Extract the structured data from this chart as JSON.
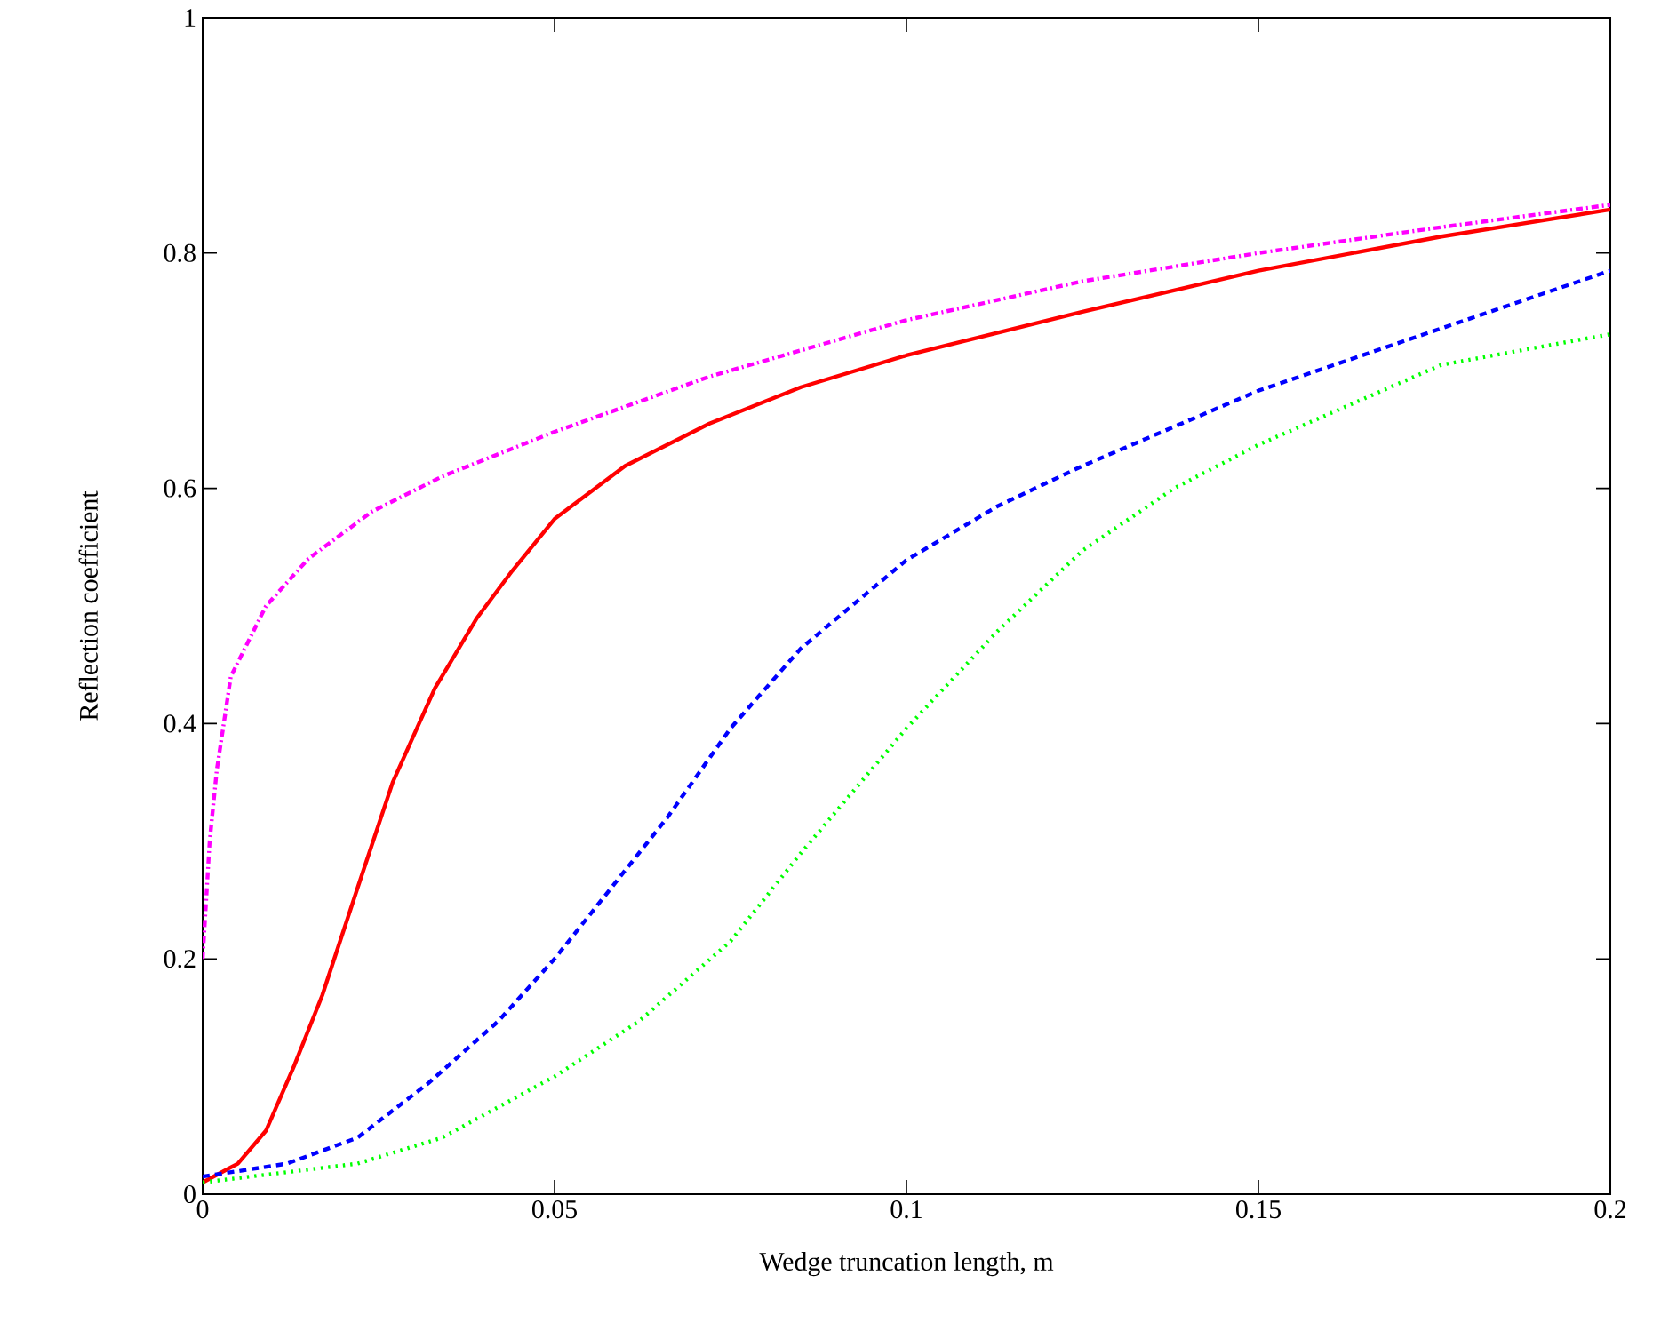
{
  "chart_data": {
    "type": "line",
    "xlabel": "Wedge truncation length,  m",
    "ylabel": "Reflection coefficient",
    "xlim": [
      0,
      0.2
    ],
    "ylim": [
      0,
      1
    ],
    "xticks": [
      0,
      0.05,
      0.1,
      0.15,
      0.2
    ],
    "yticks": [
      0,
      0.2,
      0.4,
      0.6,
      0.8,
      1
    ],
    "grid": false,
    "marker": "none",
    "series": [
      {
        "color": "#ff00ff",
        "line_style": "dashdot",
        "x": [
          0,
          0.001,
          0.002,
          0.004,
          0.009,
          0.015,
          0.024,
          0.034,
          0.05,
          0.072,
          0.1,
          0.125,
          0.15,
          0.176,
          0.2
        ],
        "values": [
          0.2,
          0.3,
          0.36,
          0.44,
          0.5,
          0.54,
          0.58,
          0.61,
          0.648,
          0.695,
          0.743,
          0.776,
          0.8,
          0.822,
          0.841
        ]
      },
      {
        "color": "#ff0000",
        "line_style": "solid",
        "x": [
          0,
          0.005,
          0.009,
          0.013,
          0.017,
          0.022,
          0.027,
          0.033,
          0.039,
          0.044,
          0.05,
          0.06,
          0.072,
          0.085,
          0.1,
          0.125,
          0.15,
          0.176,
          0.2
        ],
        "values": [
          0.01,
          0.026,
          0.054,
          0.109,
          0.169,
          0.26,
          0.35,
          0.43,
          0.49,
          0.53,
          0.574,
          0.619,
          0.655,
          0.686,
          0.713,
          0.75,
          0.785,
          0.814,
          0.837
        ]
      },
      {
        "color": "#0000ff",
        "line_style": "dashed",
        "x": [
          0,
          0.012,
          0.022,
          0.032,
          0.042,
          0.05,
          0.058,
          0.066,
          0.075,
          0.085,
          0.1,
          0.113,
          0.125,
          0.15,
          0.176,
          0.2
        ],
        "values": [
          0.015,
          0.026,
          0.048,
          0.094,
          0.147,
          0.2,
          0.26,
          0.32,
          0.396,
          0.464,
          0.539,
          0.585,
          0.619,
          0.683,
          0.736,
          0.785
        ]
      },
      {
        "color": "#00ff00",
        "line_style": "dotted",
        "x": [
          0,
          0.022,
          0.034,
          0.05,
          0.062,
          0.075,
          0.085,
          0.1,
          0.113,
          0.125,
          0.138,
          0.15,
          0.176,
          0.2
        ],
        "values": [
          0.01,
          0.026,
          0.048,
          0.1,
          0.147,
          0.215,
          0.29,
          0.396,
          0.479,
          0.547,
          0.6,
          0.637,
          0.705,
          0.731
        ]
      }
    ]
  }
}
